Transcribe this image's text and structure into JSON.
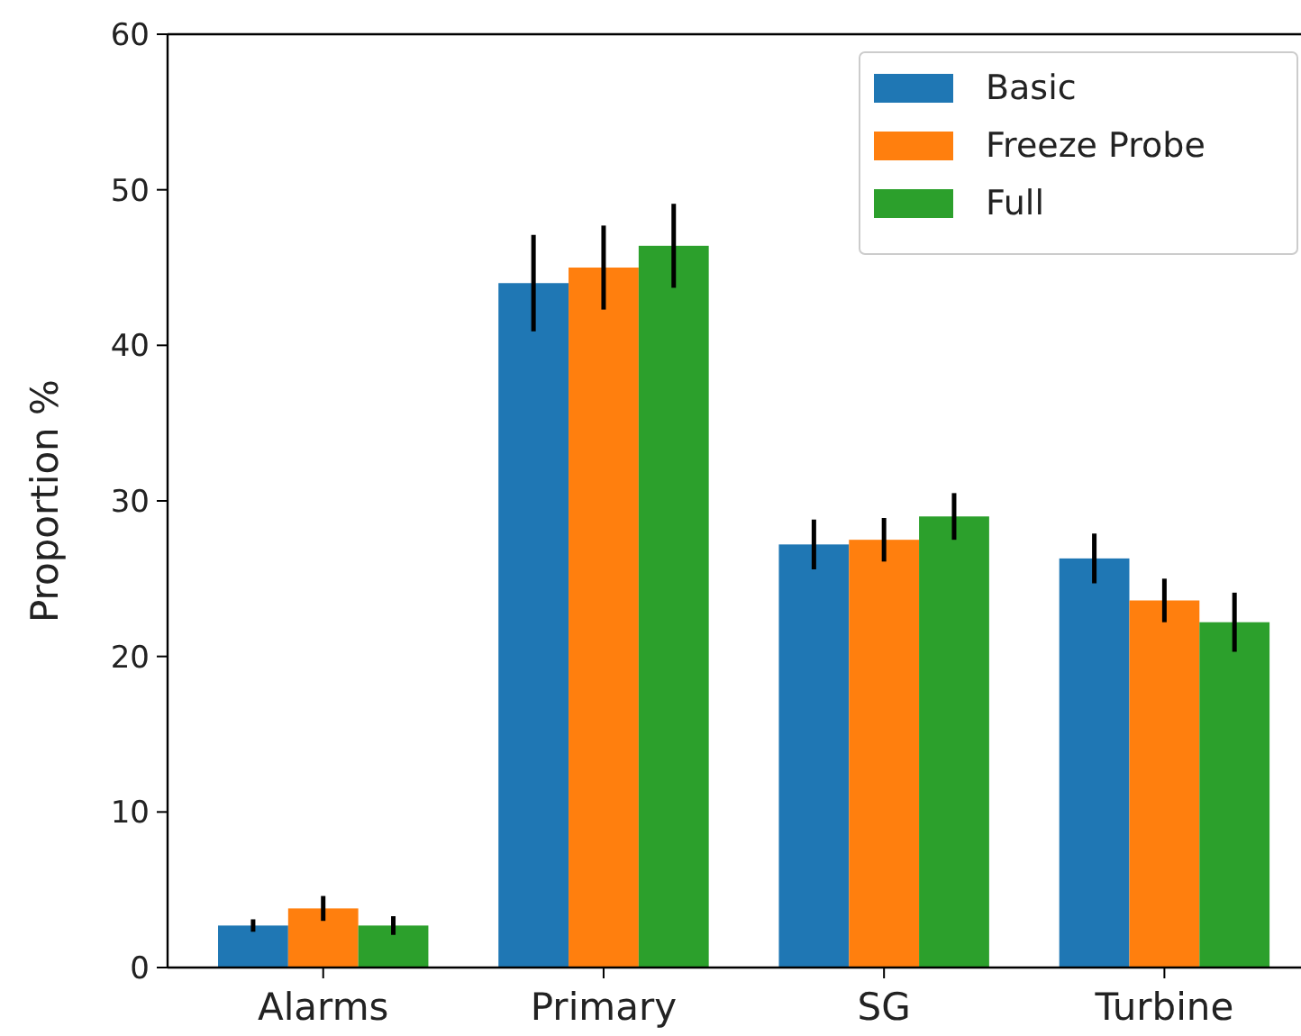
{
  "chart_data": {
    "type": "bar",
    "ylabel": "Proportion %",
    "categories": [
      "Alarms",
      "Primary",
      "SG",
      "Turbine"
    ],
    "series": [
      {
        "name": "Basic",
        "color": "#1f77b4",
        "values": [
          2.7,
          44.0,
          27.2,
          26.3
        ],
        "errors": [
          0.4,
          3.1,
          1.6,
          1.6
        ]
      },
      {
        "name": "Freeze Probe",
        "color": "#ff7f0e",
        "values": [
          3.8,
          45.0,
          27.5,
          23.6
        ],
        "errors": [
          0.8,
          2.7,
          1.4,
          1.4
        ]
      },
      {
        "name": "Full",
        "color": "#2ca02c",
        "values": [
          2.7,
          46.4,
          29.0,
          22.2
        ],
        "errors": [
          0.6,
          2.7,
          1.5,
          1.9
        ]
      }
    ],
    "ylim": [
      0,
      60
    ],
    "yticks": [
      0,
      10,
      20,
      30,
      40,
      50,
      60
    ],
    "grid": false,
    "legend": "top right"
  }
}
